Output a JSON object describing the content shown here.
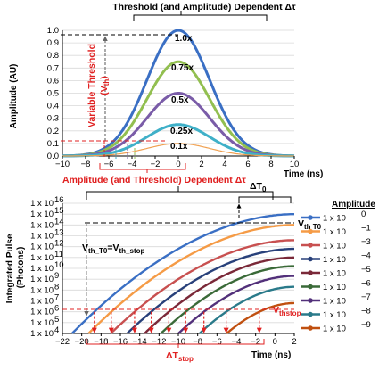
{
  "chart_data": [
    {
      "type": "line",
      "title": "Threshold (and Amplitude) Dependent Δτ",
      "xlabel": "Time (ns)",
      "ylabel": "Amplitude (AU)",
      "xlim": [
        -10,
        10
      ],
      "ylim": [
        0,
        1.0
      ],
      "x_ticks": [
        "−10",
        "−8",
        "−6",
        "−4",
        "−2",
        "0",
        "2",
        "4",
        "6",
        "8",
        "10"
      ],
      "y_ticks": [
        "0.0",
        "0.1",
        "0.2",
        "0.3",
        "0.4",
        "0.5",
        "0.6",
        "0.7",
        "0.8",
        "0.9",
        "1.0"
      ],
      "series": [
        {
          "label": "1.0x",
          "peak": 1.0,
          "sigma_ns": 2.7,
          "color": "#3a6fc4"
        },
        {
          "label": "0.75x",
          "peak": 0.75,
          "sigma_ns": 2.7,
          "color": "#92bf50"
        },
        {
          "label": "0.5x",
          "peak": 0.5,
          "sigma_ns": 2.7,
          "color": "#7a5ca8"
        },
        {
          "label": "0.25x",
          "peak": 0.25,
          "sigma_ns": 2.7,
          "color": "#3fb0c8"
        },
        {
          "label": "0.1x",
          "peak": 0.1,
          "sigma_ns": 2.7,
          "color": "#f0a050"
        }
      ],
      "threshold_level": 0.1,
      "annotations": {
        "variable_threshold_line1": "Variable Threshold",
        "variable_threshold_line2": "(V",
        "variable_threshold_sub": "th",
        "variable_threshold_close": ")",
        "bottom_label": "Amplitude (and Threshold) Dependent Δτ"
      }
    },
    {
      "type": "line",
      "xlabel": "Time (ns)",
      "ylabel": "Integrated Pulse (Photons)",
      "xlim": [
        -22,
        2
      ],
      "ylim_exponent": [
        4,
        16
      ],
      "y_scale": "log",
      "x_ticks": [
        "−22",
        "−20",
        "−18",
        "−16",
        "−14",
        "−12",
        "−10",
        "−8",
        "−6",
        "−4",
        "−2",
        "0",
        "2"
      ],
      "y_ticks": [
        "1 x 10",
        "1 x 10",
        "1 x 10",
        "1 x 10",
        "1 x 10",
        "1 x 10",
        "1 x 10",
        "1 x 10",
        "1 x 10",
        "1 x 10",
        "1 x 10",
        "1 x 10",
        "1 x 10"
      ],
      "y_tick_exponents": [
        "4",
        "5",
        "6",
        "7",
        "8",
        "9",
        "10",
        "11",
        "12",
        "13",
        "14",
        "15",
        "16"
      ],
      "legend": {
        "title": "Amplitude",
        "placement": "right",
        "entries": [
          {
            "base": "1 x 10",
            "exp": "0",
            "color": "#3a6fc4"
          },
          {
            "base": "1 x 10",
            "exp": "−1",
            "color": "#f59b46"
          },
          {
            "base": "1 x 10",
            "exp": "−3",
            "color": "#c85050"
          },
          {
            "base": "1 x 10",
            "exp": "−4",
            "color": "#28407a"
          },
          {
            "base": "1 x 10",
            "exp": "−5",
            "color": "#7a2838"
          },
          {
            "base": "1 x 10",
            "exp": "−6",
            "color": "#3a6a38"
          },
          {
            "base": "1 x 10",
            "exp": "−7",
            "color": "#52307a"
          },
          {
            "base": "1 x 10",
            "exp": "−8",
            "color": "#2a7a8a"
          },
          {
            "base": "1 x 10",
            "exp": "−9",
            "color": "#c05010"
          }
        ]
      },
      "series_curves": [
        {
          "start_ns": -21.0,
          "end_log": 15.0,
          "color": "#3a6fc4"
        },
        {
          "start_ns": -19.3,
          "end_log": 14.0,
          "color": "#f59b46"
        },
        {
          "start_ns": -17.0,
          "end_log": 12.6,
          "color": "#c85050"
        },
        {
          "start_ns": -15.3,
          "end_log": 11.8,
          "color": "#28407a"
        },
        {
          "start_ns": -13.5,
          "end_log": 11.0,
          "color": "#7a2838"
        },
        {
          "start_ns": -11.8,
          "end_log": 10.2,
          "color": "#3a6a38"
        },
        {
          "start_ns": -10.0,
          "end_log": 9.3,
          "color": "#52307a"
        },
        {
          "start_ns": -7.8,
          "end_log": 8.3,
          "color": "#2a7a8a"
        },
        {
          "start_ns": -5.0,
          "end_log": 6.8,
          "color": "#c05010"
        }
      ],
      "v_th_stop_level_log": 6.0,
      "v_th_t0_level_log": 14.0,
      "annotations": {
        "delta_t0": "ΔT",
        "delta_t0_sub": "0",
        "vth_t0_label": "V",
        "vth_t0_sub": "th T0",
        "vth_left_a": "V",
        "vth_left_a_sub": "th_T0",
        "vth_left_eq": "=V",
        "vth_left_b_sub": "th_stop",
        "vth_right": "V",
        "vth_right_sub": "thstop",
        "delta_tstop": "ΔT",
        "delta_tstop_sub": "stop"
      }
    }
  ]
}
